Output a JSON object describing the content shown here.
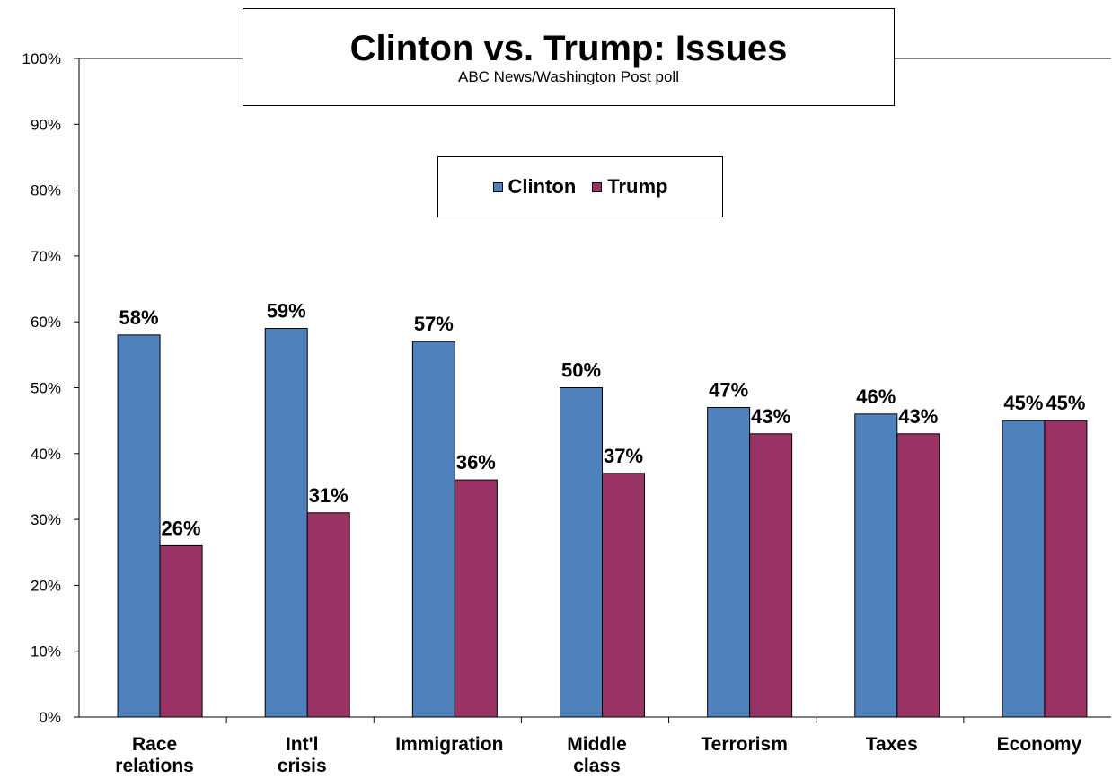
{
  "chart_data": {
    "type": "bar",
    "title": "Clinton vs. Trump: Issues",
    "subtitle": "ABC News/Washington  Post poll",
    "categories": [
      [
        "Race",
        "relations"
      ],
      [
        "Int'l",
        "crisis"
      ],
      [
        "Immigration"
      ],
      [
        "Middle",
        "class"
      ],
      [
        "Terrorism"
      ],
      [
        "Taxes"
      ],
      [
        "Economy"
      ]
    ],
    "series": [
      {
        "name": "Clinton",
        "color": "#4F81BD",
        "values": [
          58,
          59,
          57,
          50,
          47,
          46,
          45
        ],
        "labels": [
          "58%",
          "59%",
          "57%",
          "50%",
          "47%",
          "46%",
          "45%"
        ]
      },
      {
        "name": "Trump",
        "color": "#993366",
        "values": [
          26,
          31,
          36,
          37,
          43,
          43,
          45
        ],
        "labels": [
          "26%",
          "31%",
          "36%",
          "37%",
          "43%",
          "43%",
          "45%"
        ]
      }
    ],
    "ylim": [
      0,
      100
    ],
    "yticks": [
      "0%",
      "10%",
      "20%",
      "30%",
      "40%",
      "50%",
      "60%",
      "70%",
      "80%",
      "90%",
      "100%"
    ],
    "xlabel": "",
    "ylabel": "",
    "legend_position": "top-center",
    "grid": false
  }
}
